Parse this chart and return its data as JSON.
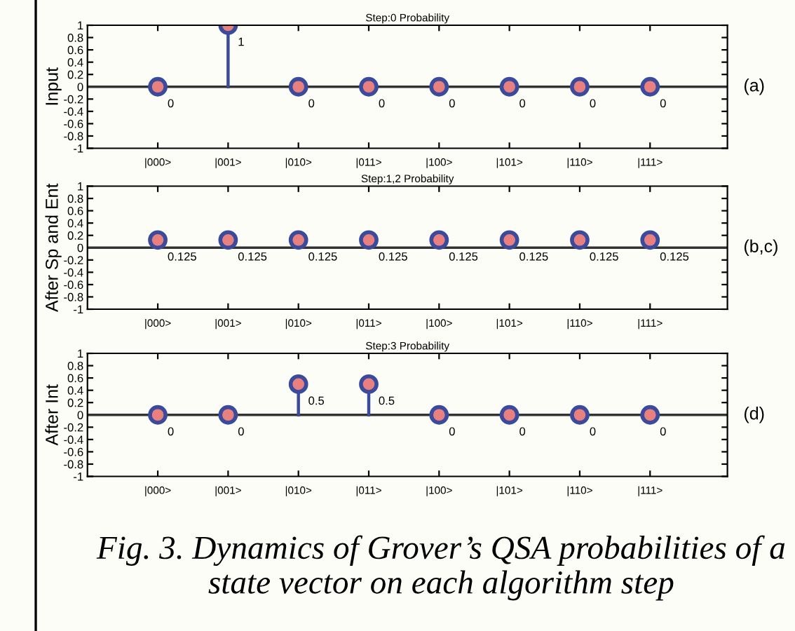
{
  "chart_data": [
    {
      "type": "lollipop",
      "title": "Step:0 Probability",
      "ylabel": "Input",
      "categories": [
        "|000>",
        "|001>",
        "|010>",
        "|011>",
        "|100>",
        "|101>",
        "|110>",
        "|111>"
      ],
      "series": [
        {
          "color": "#3c4a9c",
          "values": [
            0,
            1,
            0,
            0,
            0,
            0,
            0,
            0
          ]
        }
      ],
      "ylim": [
        -1,
        1
      ],
      "yticks": [
        -1,
        -0.8,
        -0.6,
        -0.4,
        -0.2,
        0,
        0.2,
        0.4,
        0.6,
        0.8,
        1
      ],
      "marker": "circle",
      "data_labels": true,
      "annotations": [
        "(a)"
      ]
    },
    {
      "type": "lollipop",
      "title": "Step:1,2 Probability",
      "ylabel": "After Sp and Ent",
      "categories": [
        "|000>",
        "|001>",
        "|010>",
        "|011>",
        "|100>",
        "|101>",
        "|110>",
        "|111>"
      ],
      "series": [
        {
          "color": "#3c4a9c",
          "values": [
            0.125,
            0.125,
            0.125,
            0.125,
            0.125,
            0.125,
            0.125,
            0.125
          ]
        }
      ],
      "ylim": [
        -1,
        1
      ],
      "yticks": [
        -1,
        -0.8,
        -0.6,
        -0.4,
        -0.2,
        0,
        0.2,
        0.4,
        0.6,
        0.8,
        1
      ],
      "marker": "circle",
      "data_labels": true,
      "annotations": [
        "(b,c)"
      ]
    },
    {
      "type": "lollipop",
      "title": "Step:3 Probability",
      "ylabel": "After Int",
      "categories": [
        "|000>",
        "|001>",
        "|010>",
        "|011>",
        "|100>",
        "|101>",
        "|110>",
        "|111>"
      ],
      "series": [
        {
          "color": "#3c4a9c",
          "values": [
            0,
            0,
            0.5,
            0.5,
            0,
            0,
            0,
            0
          ]
        }
      ],
      "ylim": [
        -1,
        1
      ],
      "yticks": [
        -1,
        -0.8,
        -0.6,
        -0.4,
        -0.2,
        0,
        0.2,
        0.4,
        0.6,
        0.8,
        1
      ],
      "marker": "circle",
      "data_labels": true,
      "annotations": [
        "(d)",
        "Fig. 3. Dynamics of Grover’s QSA probabilities of a state vector on each algorithm step"
      ]
    }
  ]
}
